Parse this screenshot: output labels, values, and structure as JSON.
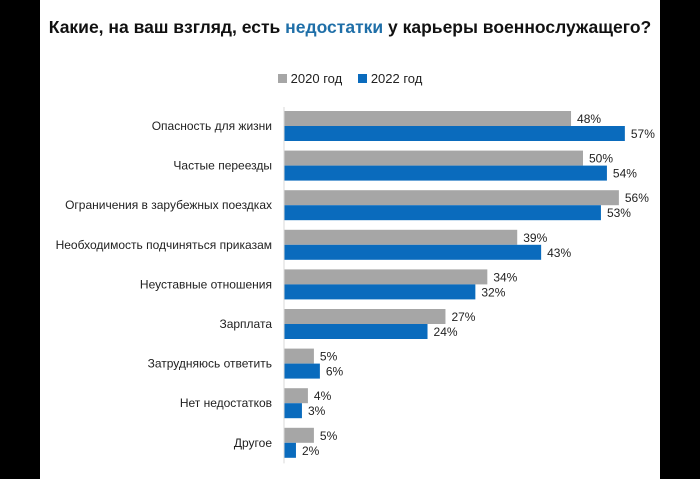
{
  "chart_data": {
    "type": "bar",
    "orientation": "horizontal",
    "title_parts": [
      "Какие, на ваш взгляд, есть ",
      "недостатки",
      " у карьеры военнослужащего?"
    ],
    "categories": [
      "Опасность для жизни",
      "Частые переезды",
      "Ограничения в зарубежных поездках",
      "Необходимость подчиняться приказам",
      "Неуставные отношения",
      "Зарплата",
      "Затрудняюсь ответить",
      "Нет недостатков",
      "Другое"
    ],
    "series": [
      {
        "name": "2020 год",
        "color": "#a6a6a6",
        "values": [
          48,
          50,
          56,
          39,
          34,
          27,
          5,
          4,
          5
        ]
      },
      {
        "name": "2022 год",
        "color": "#0a6bbd",
        "values": [
          57,
          54,
          53,
          43,
          32,
          24,
          6,
          3,
          2
        ]
      }
    ],
    "value_suffix": "%",
    "legend_position": "top",
    "grid": false,
    "xlim": [
      0,
      60
    ]
  }
}
